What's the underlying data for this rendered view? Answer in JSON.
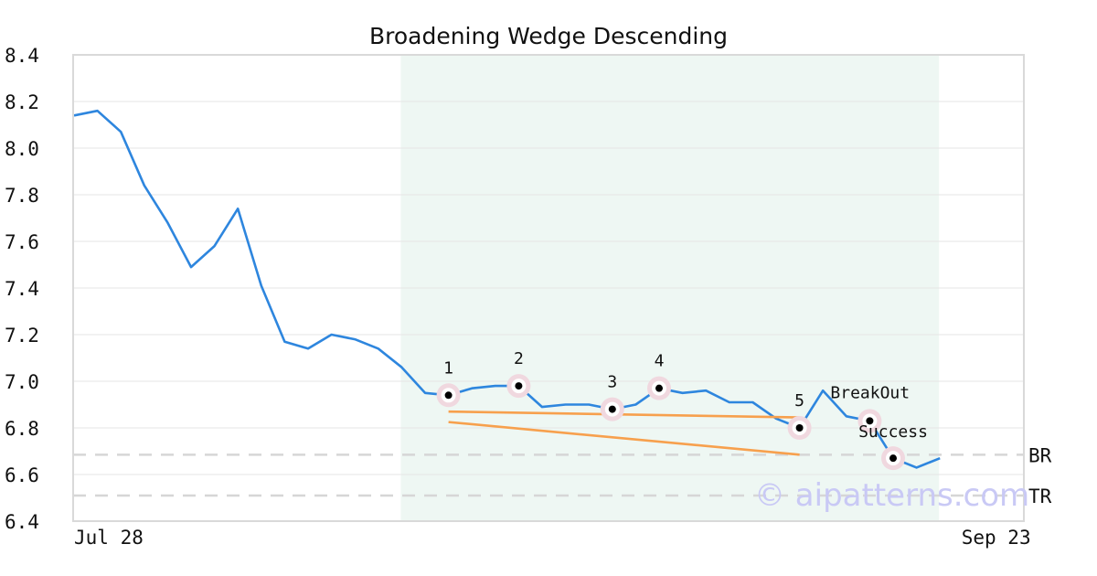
{
  "chart_data": {
    "type": "line",
    "title": "Broadening Wedge Descending",
    "ylim": [
      6.4,
      8.4
    ],
    "yticks": [
      "8.4",
      "8.2",
      "8.0",
      "7.8",
      "7.6",
      "7.4",
      "7.2",
      "7.0",
      "6.8",
      "6.6",
      "6.4"
    ],
    "xtick_labels": [
      {
        "index": 0,
        "label": "Jul 28"
      },
      {
        "index": 41,
        "label": "Sep 23"
      }
    ],
    "grid": true,
    "series": [
      {
        "values": [
          8.14,
          8.16,
          8.07,
          7.84,
          7.68,
          7.49,
          7.58,
          7.74,
          7.41,
          7.17,
          7.14,
          7.2,
          7.18,
          7.14,
          7.06,
          6.95,
          6.94,
          6.97,
          6.98,
          6.98,
          6.89,
          6.9,
          6.9,
          6.88,
          6.9,
          6.97,
          6.95,
          6.96,
          6.91,
          6.91,
          6.84,
          6.8,
          6.96,
          6.85,
          6.83,
          6.67,
          6.63,
          6.67
        ]
      }
    ],
    "highlight_range": [
      14,
      37
    ],
    "points": [
      {
        "label": "1",
        "index": 16,
        "value": 6.94
      },
      {
        "label": "2",
        "index": 19,
        "value": 6.98
      },
      {
        "label": "3",
        "index": 23,
        "value": 6.88
      },
      {
        "label": "4",
        "index": 25,
        "value": 6.97
      },
      {
        "label": "5",
        "index": 31,
        "value": 6.8
      }
    ],
    "events": [
      {
        "label": "BreakOut",
        "index": 34,
        "value": 6.83
      },
      {
        "label": "Success",
        "index": 35,
        "value": 6.67
      }
    ],
    "trendlines": [
      {
        "from": [
          16,
          6.87
        ],
        "to": [
          31,
          6.845
        ]
      },
      {
        "from": [
          16,
          6.825
        ],
        "to": [
          31,
          6.685
        ]
      }
    ],
    "levels": [
      {
        "label": "BR",
        "value": 6.685
      },
      {
        "label": "TR",
        "value": 6.51
      }
    ],
    "watermark": "© aipatterns.com",
    "colors": {
      "line": "#2e86de",
      "trend": "#f7a04d",
      "highlight": "#eef7f3",
      "marker_halo": "#f0d8df",
      "level": "#d6d6d6"
    }
  }
}
